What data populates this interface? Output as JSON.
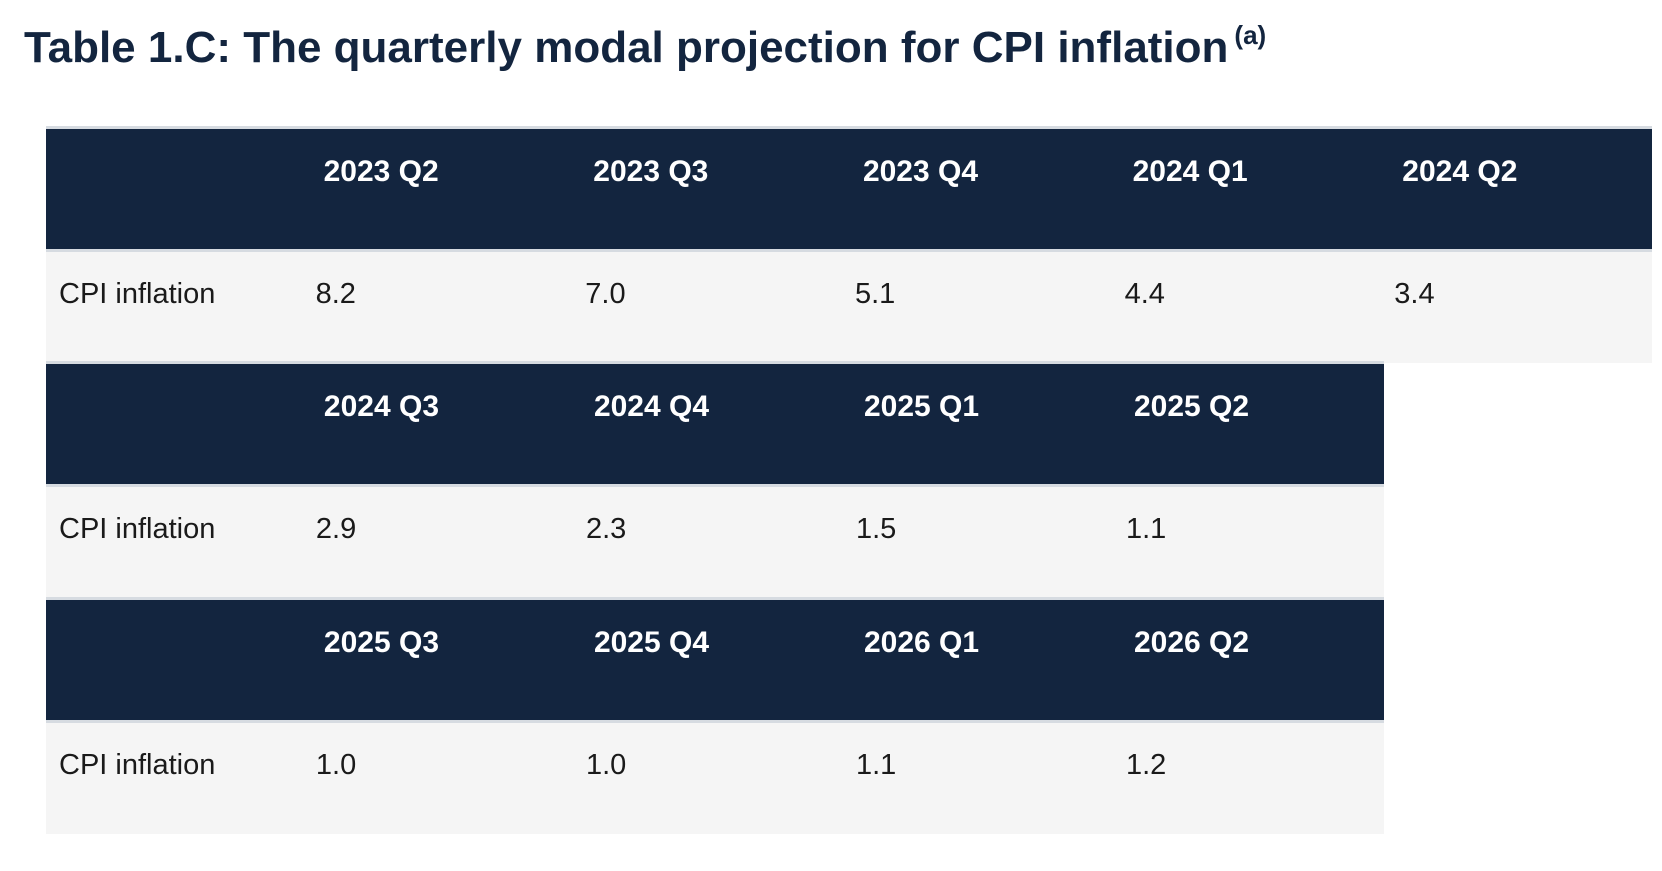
{
  "title": {
    "text": "Table 1.C: The quarterly modal projection for CPI inflation",
    "footnote_marker": "(a)"
  },
  "blocks": [
    {
      "quarters": [
        "2023 Q2",
        "2023 Q3",
        "2023 Q4",
        "2024 Q1",
        "2024 Q2"
      ],
      "row_label": "CPI inflation",
      "values": [
        "8.2",
        "7.0",
        "5.1",
        "4.4",
        "3.4"
      ]
    },
    {
      "quarters": [
        "2024 Q3",
        "2024 Q4",
        "2025 Q1",
        "2025 Q2"
      ],
      "row_label": "CPI inflation",
      "values": [
        "2.9",
        "2.3",
        "1.5",
        "1.1"
      ]
    },
    {
      "quarters": [
        "2025 Q3",
        "2025 Q4",
        "2026 Q1",
        "2026 Q2"
      ],
      "row_label": "CPI inflation",
      "values": [
        "1.0",
        "1.0",
        "1.1",
        "1.2"
      ]
    }
  ],
  "colors": {
    "header_bg": "#13253f",
    "row_bg": "#f5f5f5",
    "title": "#13253f"
  }
}
